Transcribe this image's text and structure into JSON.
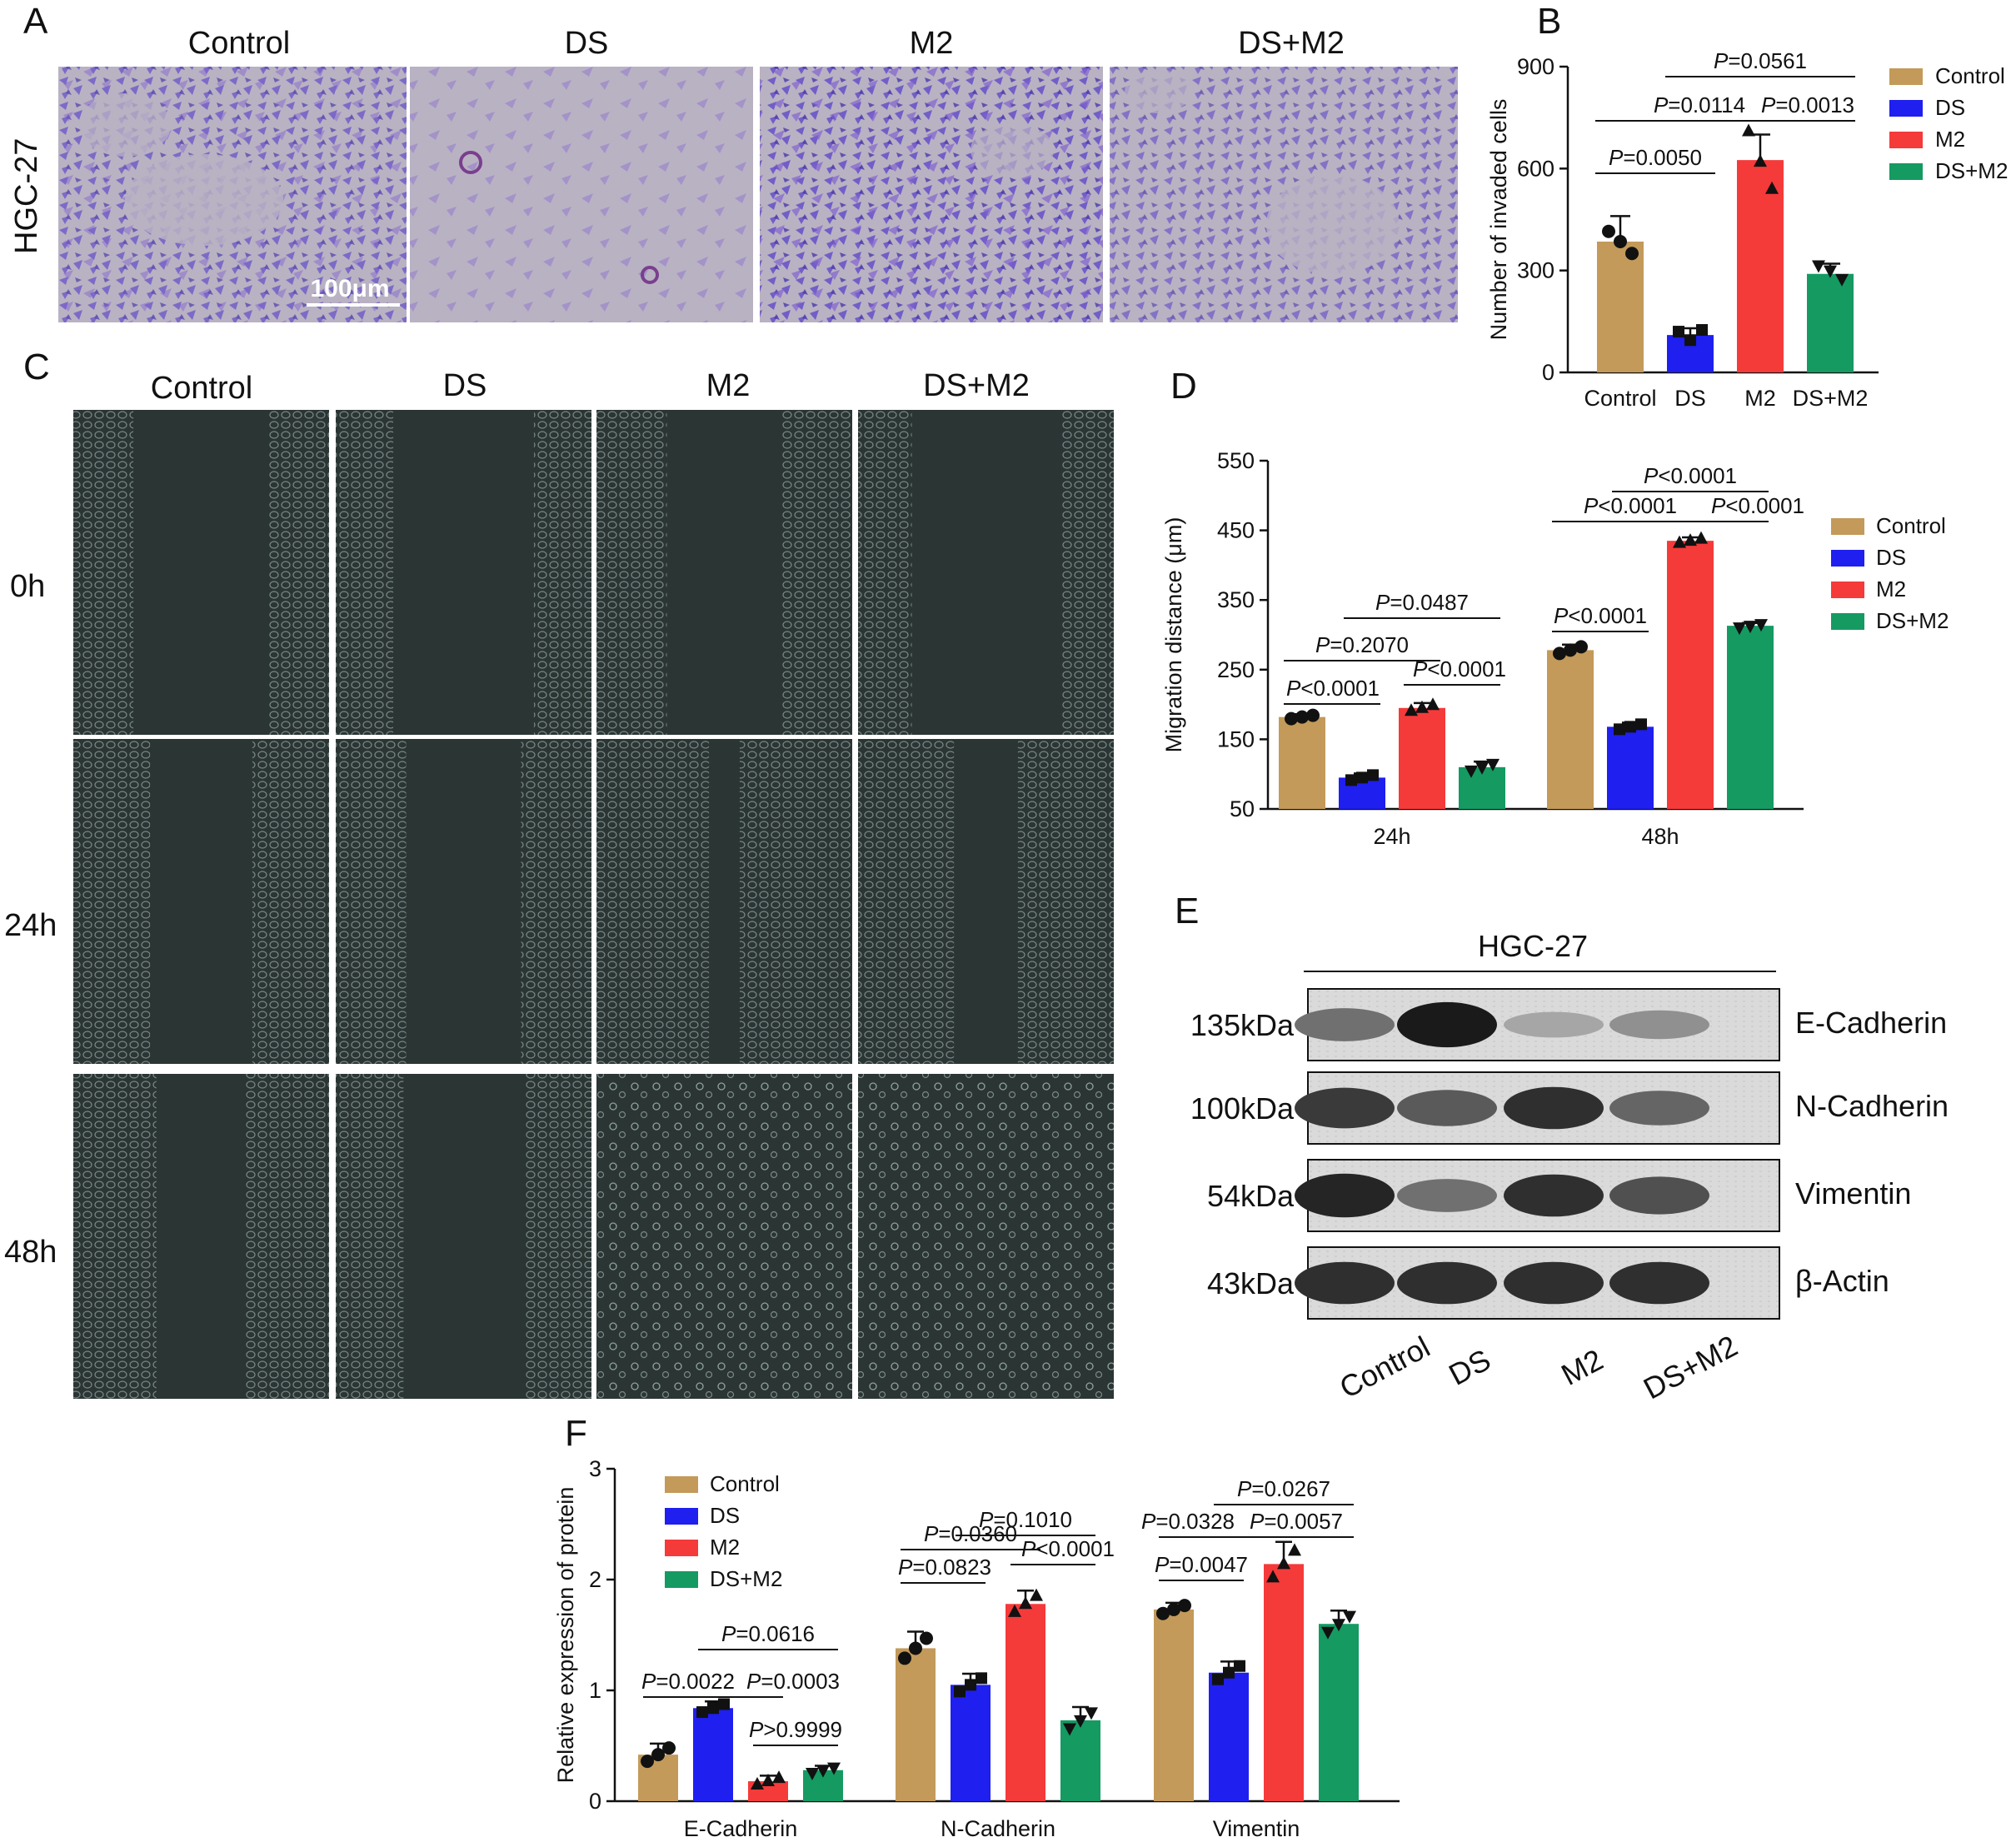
{
  "colors": {
    "control": "#C39A5A",
    "ds": "#1F1FF0",
    "m2": "#F53A3A",
    "dsm2": "#159A62",
    "transwell_stain": "#6A55C8",
    "transwell_bg": "#B9B2C3",
    "scratch_bg": "#2A3534"
  },
  "panel_letters": [
    "A",
    "B",
    "C",
    "D",
    "E",
    "F"
  ],
  "panelA": {
    "cell_line": "HGC-27",
    "groups": [
      "Control",
      "DS",
      "M2",
      "DS+M2"
    ],
    "scale_bar": "100μm"
  },
  "panelC": {
    "groups": [
      "Control",
      "DS",
      "M2",
      "DS+M2"
    ],
    "timepoints": [
      "0h",
      "24h",
      "48h"
    ],
    "gap_fraction": [
      [
        0.53,
        0.55,
        0.45,
        0.58
      ],
      [
        0.4,
        0.45,
        0.12,
        0.25
      ],
      [
        0.35,
        0.47,
        0.0,
        0.0
      ]
    ]
  },
  "panelE": {
    "cell_line": "HGC-27",
    "lanes": [
      "Control",
      "DS",
      "M2",
      "DS+M2"
    ],
    "blots": [
      {
        "mw": "135kDa",
        "protein": "E-Cadherin",
        "intensity": [
          0.55,
          0.95,
          0.3,
          0.4
        ]
      },
      {
        "mw": "100kDa",
        "protein": "N-Cadherin",
        "intensity": [
          0.8,
          0.65,
          0.85,
          0.6
        ]
      },
      {
        "mw": "54kDa",
        "protein": "Vimentin",
        "intensity": [
          0.9,
          0.55,
          0.85,
          0.7
        ]
      },
      {
        "mw": "43kDa",
        "protein": "β-Actin",
        "intensity": [
          0.85,
          0.85,
          0.85,
          0.85
        ]
      }
    ]
  },
  "chart_data": [
    {
      "id": "B",
      "type": "bar",
      "ylabel": "Number of invaded cells",
      "ylim": [
        0,
        900
      ],
      "yticks": [
        0,
        300,
        600,
        900
      ],
      "categories": [
        "Control",
        "DS",
        "M2",
        "DS+M2"
      ],
      "values": [
        385,
        110,
        625,
        290
      ],
      "errors": [
        75,
        20,
        75,
        30
      ],
      "points": [
        [
          415,
          385,
          350
        ],
        [
          120,
          95,
          125
        ],
        [
          710,
          620,
          540
        ],
        [
          315,
          300,
          275
        ]
      ],
      "legend": [
        "Control",
        "DS",
        "M2",
        "DS+M2"
      ],
      "comparisons": [
        {
          "a": 0,
          "b": 1,
          "p": "=0.0050"
        },
        {
          "a": 0,
          "b": 2,
          "p": "=0.0114"
        },
        {
          "a": 2,
          "b": 3,
          "p": "=0.0013"
        },
        {
          "a": 1,
          "b": 3,
          "p": "=0.0561"
        }
      ]
    },
    {
      "id": "D",
      "type": "bar",
      "ylabel": "Migration distance (μm)",
      "ylim": [
        50,
        550
      ],
      "yticks": [
        50,
        150,
        250,
        350,
        450,
        550
      ],
      "categories": [
        "24h",
        "48h"
      ],
      "series": [
        {
          "name": "Control",
          "values": [
            182,
            278
          ],
          "errors": [
            4,
            8
          ]
        },
        {
          "name": "DS",
          "values": [
            95,
            168
          ],
          "errors": [
            6,
            6
          ]
        },
        {
          "name": "M2",
          "values": [
            195,
            435
          ],
          "errors": [
            7,
            5
          ]
        },
        {
          "name": "DS+M2",
          "values": [
            110,
            313
          ],
          "errors": [
            8,
            4
          ]
        }
      ],
      "comparisons": [
        {
          "group": 0,
          "a": 0,
          "b": 1,
          "p": "<0.0001"
        },
        {
          "group": 0,
          "a": 0,
          "b": 2,
          "p": "=0.2070"
        },
        {
          "group": 0,
          "a": 2,
          "b": 3,
          "p": "<0.0001"
        },
        {
          "group": 0,
          "a": 1,
          "b": 3,
          "p": "=0.0487"
        },
        {
          "group": 1,
          "a": 0,
          "b": 1,
          "p": "<0.0001"
        },
        {
          "group": 1,
          "a": 0,
          "b": 2,
          "p": "<0.0001"
        },
        {
          "group": 1,
          "a": 2,
          "b": 3,
          "p": "<0.0001"
        },
        {
          "group": 1,
          "a": 1,
          "b": 3,
          "p": "<0.0001"
        }
      ]
    },
    {
      "id": "F",
      "type": "bar",
      "ylabel": "Relative expression of protein",
      "ylim": [
        0,
        3
      ],
      "yticks": [
        0,
        1,
        2,
        3
      ],
      "categories": [
        "E-Cadherin",
        "N-Cadherin",
        "Vimentin"
      ],
      "series": [
        {
          "name": "Control",
          "values": [
            0.42,
            1.38,
            1.73
          ],
          "errors": [
            0.1,
            0.15,
            0.06
          ]
        },
        {
          "name": "DS",
          "values": [
            0.84,
            1.05,
            1.16
          ],
          "errors": [
            0.06,
            0.1,
            0.1
          ]
        },
        {
          "name": "M2",
          "values": [
            0.18,
            1.78,
            2.14
          ],
          "errors": [
            0.05,
            0.12,
            0.2
          ]
        },
        {
          "name": "DS+M2",
          "values": [
            0.28,
            0.73,
            1.6
          ],
          "errors": [
            0.04,
            0.12,
            0.12
          ]
        }
      ],
      "comparisons": [
        {
          "group": 0,
          "a": 0,
          "b": 1,
          "p": "=0.0022"
        },
        {
          "group": 0,
          "a": 1,
          "b": 2,
          "p": "=0.0003"
        },
        {
          "group": 0,
          "a": 1,
          "b": 3,
          "p": "=0.0616"
        },
        {
          "group": 0,
          "a": 2,
          "b": 3,
          "p": ">0.9999"
        },
        {
          "group": 1,
          "a": 0,
          "b": 1,
          "p": "=0.0823"
        },
        {
          "group": 1,
          "a": 0,
          "b": 2,
          "p": "=0.0360"
        },
        {
          "group": 1,
          "a": 2,
          "b": 3,
          "p": "<0.0001"
        },
        {
          "group": 1,
          "a": 1,
          "b": 3,
          "p": "=0.1010"
        },
        {
          "group": 2,
          "a": 0,
          "b": 1,
          "p": "=0.0047"
        },
        {
          "group": 2,
          "a": 0,
          "b": 2,
          "p": "=0.0328"
        },
        {
          "group": 2,
          "a": 2,
          "b": 3,
          "p": "=0.0057"
        },
        {
          "group": 2,
          "a": 1,
          "b": 3,
          "p": "=0.0267"
        }
      ]
    }
  ]
}
